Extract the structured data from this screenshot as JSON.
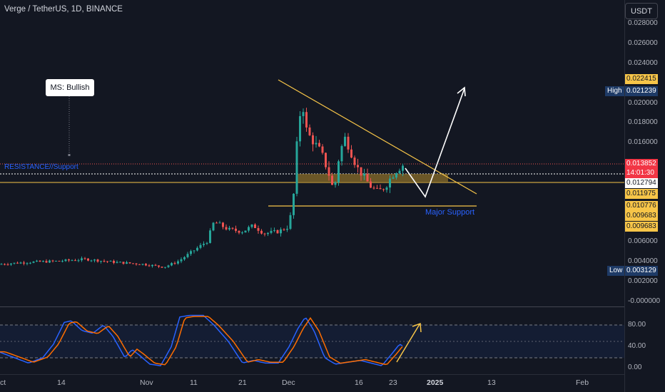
{
  "header": {
    "title": "Verge / TetherUS, 1D, BINANCE"
  },
  "quote_button": {
    "label": "USDT"
  },
  "price_axis": {
    "labels": [
      "0.028000",
      "0.026000",
      "0.024000",
      "0.020000",
      "0.018000",
      "0.016000",
      "0.006000",
      "0.004000",
      "0.002000",
      "-0.000000"
    ]
  },
  "price_tags": {
    "top_yellow": "0.022415",
    "high_label": "High",
    "high_value": "0.021239",
    "current_price": "0.013852",
    "countdown": "14:01:30",
    "white_line": "0.012794",
    "yellow_1": "0.011975",
    "yellow_2": "0.010776",
    "yellow_3": "0.009683",
    "yellow_4": "0.009683",
    "low_label": "Low",
    "low_value": "0.003129"
  },
  "annotations": {
    "ms_bullish": "MS: Bullish",
    "resistance": "RESISTANCE//Support",
    "major_support": "Major Support"
  },
  "time_axis": {
    "labels": [
      {
        "text": "ct"
      },
      {
        "text": "14"
      },
      {
        "text": "Nov"
      },
      {
        "text": "11"
      },
      {
        "text": "21"
      },
      {
        "text": "Dec"
      },
      {
        "text": "16"
      },
      {
        "text": "23"
      },
      {
        "text": "2025"
      },
      {
        "text": "13"
      },
      {
        "text": "Feb"
      }
    ]
  },
  "oscillator": {
    "labels": [
      "80.00",
      "40.00",
      "0.00"
    ]
  },
  "colors": {
    "background": "#131722",
    "up_candle": "#26a69a",
    "down_candle": "#ef5350",
    "yellow": "#f7c548",
    "blue_line": "#2962ff",
    "orange_line": "#ff6d00",
    "tag_blue": "#1e3a66",
    "current_red": "#f23645"
  }
}
